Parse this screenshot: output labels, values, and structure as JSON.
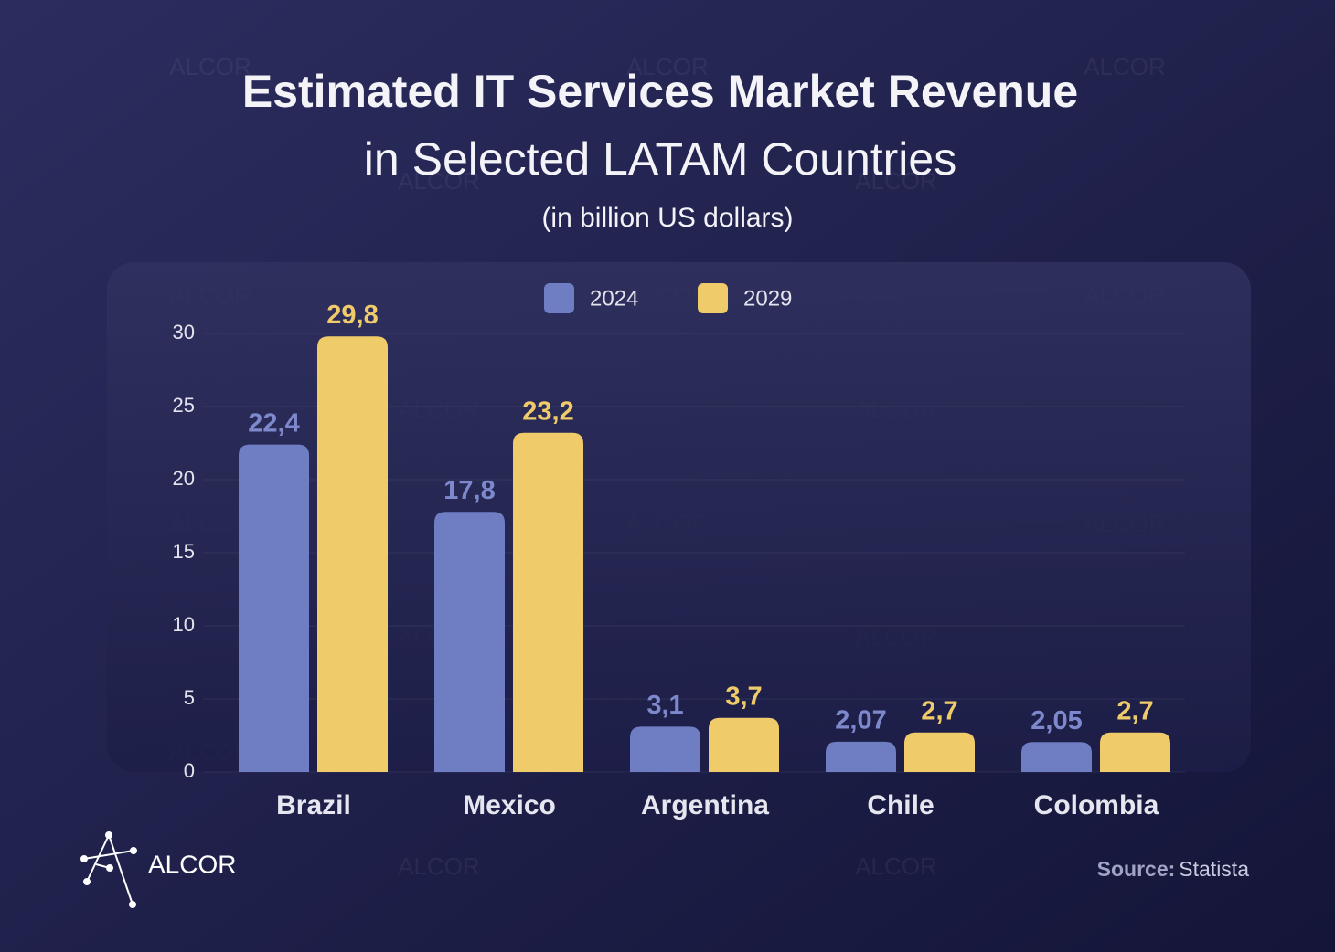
{
  "chart_data": {
    "type": "bar",
    "title": "Estimated IT Services Market Revenue",
    "subtitle": "in Selected LATAM Countries",
    "unit_note": "(in billion US dollars)",
    "categories": [
      "Brazil",
      "Mexico",
      "Argentina",
      "Chile",
      "Colombia"
    ],
    "series": [
      {
        "name": "2024",
        "color": "#6f7ec3",
        "label_color": "#7d89cc",
        "values": [
          22.4,
          17.8,
          3.1,
          2.07,
          2.05
        ],
        "value_labels": [
          "22,4",
          "17,8",
          "3,1",
          "2,07",
          "2,05"
        ]
      },
      {
        "name": "2029",
        "color": "#f0cb6a",
        "label_color": "#f0cb6a",
        "values": [
          29.8,
          23.2,
          3.7,
          2.7,
          2.7
        ],
        "value_labels": [
          "29,8",
          "23,2",
          "3,7",
          "2,7",
          "2,7"
        ]
      }
    ],
    "ylim": [
      0,
      30
    ],
    "yticks": [
      0,
      5,
      10,
      15,
      20,
      25,
      30
    ],
    "grid": true,
    "legend": "top",
    "source_label": "Source:",
    "source": "Statista",
    "brand": "ALCOR"
  }
}
